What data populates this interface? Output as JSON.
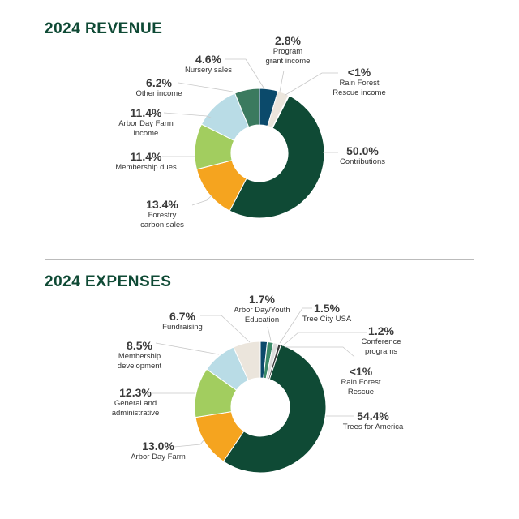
{
  "chart_data": [
    {
      "type": "pie",
      "donut": true,
      "title": "2024 REVENUE",
      "slices": [
        {
          "label": "Nursery sales",
          "display": "4.6%",
          "value": 4.6,
          "color": "#0b4a6b"
        },
        {
          "label": "Program\ngrant income",
          "display": "2.8%",
          "value": 2.8,
          "color": "#ebe5dc"
        },
        {
          "label": "Rain Forest\nRescue income",
          "display": "<1%",
          "value": 0.2,
          "color": "#3a3a3a"
        },
        {
          "label": "Contributions",
          "display": "50.0%",
          "value": 50.0,
          "color": "#0f4a35"
        },
        {
          "label": "Forestry\ncarbon sales",
          "display": "13.4%",
          "value": 13.4,
          "color": "#f5a41f"
        },
        {
          "label": "Membership dues",
          "display": "11.4%",
          "value": 11.4,
          "color": "#a2cd5f"
        },
        {
          "label": "Arbor Day Farm\nincome",
          "display": "11.4%",
          "value": 11.4,
          "color": "#b9dce6"
        },
        {
          "label": "Other income",
          "display": "6.2%",
          "value": 6.2,
          "color": "#3b7a5f"
        }
      ]
    },
    {
      "type": "pie",
      "donut": true,
      "title": "2024 EXPENSES",
      "slices": [
        {
          "label": "Arbor Day/Youth\nEducation",
          "display": "1.7%",
          "value": 1.7,
          "color": "#0b4a6b"
        },
        {
          "label": "Tree City USA",
          "display": "1.5%",
          "value": 1.5,
          "color": "#3b8a68"
        },
        {
          "label": "Conference\nprograms",
          "display": "1.2%",
          "value": 1.2,
          "color": "#dcdcdc"
        },
        {
          "label": "Rain Forest\nRescue",
          "display": "<1%",
          "value": 0.7,
          "color": "#3a3a3a"
        },
        {
          "label": "Trees for America",
          "display": "54.4%",
          "value": 54.4,
          "color": "#0f4a35"
        },
        {
          "label": "Arbor Day Farm",
          "display": "13.0%",
          "value": 13.0,
          "color": "#f5a41f"
        },
        {
          "label": "General and\nadministrative",
          "display": "12.3%",
          "value": 12.3,
          "color": "#a2cd5f"
        },
        {
          "label": "Membership\ndevelopment",
          "display": "8.5%",
          "value": 8.5,
          "color": "#b9dce6"
        },
        {
          "label": "Fundraising",
          "display": "6.7%",
          "value": 6.7,
          "color": "#ebe5dc"
        }
      ]
    }
  ]
}
